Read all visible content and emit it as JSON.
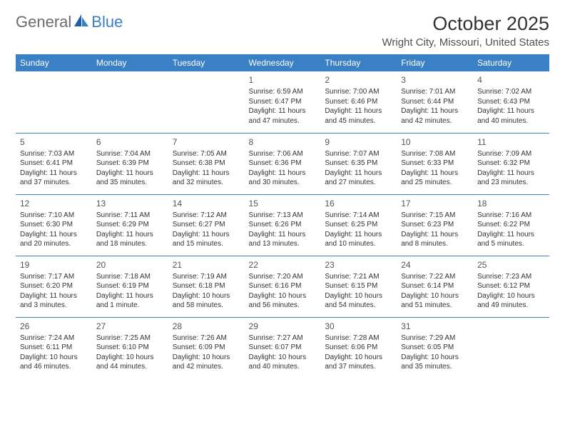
{
  "logo": {
    "part1": "General",
    "part2": "Blue"
  },
  "title": "October 2025",
  "location": "Wright City, Missouri, United States",
  "colors": {
    "header_bg": "#3b7fc4",
    "header_text": "#ffffff",
    "border": "#3b7fc4",
    "day_text": "#333333",
    "daynum": "#555555",
    "logo_gray": "#6b6b6b",
    "logo_blue": "#3b7fc4"
  },
  "daysOfWeek": [
    "Sunday",
    "Monday",
    "Tuesday",
    "Wednesday",
    "Thursday",
    "Friday",
    "Saturday"
  ],
  "weeks": [
    [
      null,
      null,
      null,
      {
        "n": "1",
        "sr": "6:59 AM",
        "ss": "6:47 PM",
        "dl": "11 hours and 47 minutes."
      },
      {
        "n": "2",
        "sr": "7:00 AM",
        "ss": "6:46 PM",
        "dl": "11 hours and 45 minutes."
      },
      {
        "n": "3",
        "sr": "7:01 AM",
        "ss": "6:44 PM",
        "dl": "11 hours and 42 minutes."
      },
      {
        "n": "4",
        "sr": "7:02 AM",
        "ss": "6:43 PM",
        "dl": "11 hours and 40 minutes."
      }
    ],
    [
      {
        "n": "5",
        "sr": "7:03 AM",
        "ss": "6:41 PM",
        "dl": "11 hours and 37 minutes."
      },
      {
        "n": "6",
        "sr": "7:04 AM",
        "ss": "6:39 PM",
        "dl": "11 hours and 35 minutes."
      },
      {
        "n": "7",
        "sr": "7:05 AM",
        "ss": "6:38 PM",
        "dl": "11 hours and 32 minutes."
      },
      {
        "n": "8",
        "sr": "7:06 AM",
        "ss": "6:36 PM",
        "dl": "11 hours and 30 minutes."
      },
      {
        "n": "9",
        "sr": "7:07 AM",
        "ss": "6:35 PM",
        "dl": "11 hours and 27 minutes."
      },
      {
        "n": "10",
        "sr": "7:08 AM",
        "ss": "6:33 PM",
        "dl": "11 hours and 25 minutes."
      },
      {
        "n": "11",
        "sr": "7:09 AM",
        "ss": "6:32 PM",
        "dl": "11 hours and 23 minutes."
      }
    ],
    [
      {
        "n": "12",
        "sr": "7:10 AM",
        "ss": "6:30 PM",
        "dl": "11 hours and 20 minutes."
      },
      {
        "n": "13",
        "sr": "7:11 AM",
        "ss": "6:29 PM",
        "dl": "11 hours and 18 minutes."
      },
      {
        "n": "14",
        "sr": "7:12 AM",
        "ss": "6:27 PM",
        "dl": "11 hours and 15 minutes."
      },
      {
        "n": "15",
        "sr": "7:13 AM",
        "ss": "6:26 PM",
        "dl": "11 hours and 13 minutes."
      },
      {
        "n": "16",
        "sr": "7:14 AM",
        "ss": "6:25 PM",
        "dl": "11 hours and 10 minutes."
      },
      {
        "n": "17",
        "sr": "7:15 AM",
        "ss": "6:23 PM",
        "dl": "11 hours and 8 minutes."
      },
      {
        "n": "18",
        "sr": "7:16 AM",
        "ss": "6:22 PM",
        "dl": "11 hours and 5 minutes."
      }
    ],
    [
      {
        "n": "19",
        "sr": "7:17 AM",
        "ss": "6:20 PM",
        "dl": "11 hours and 3 minutes."
      },
      {
        "n": "20",
        "sr": "7:18 AM",
        "ss": "6:19 PM",
        "dl": "11 hours and 1 minute."
      },
      {
        "n": "21",
        "sr": "7:19 AM",
        "ss": "6:18 PM",
        "dl": "10 hours and 58 minutes."
      },
      {
        "n": "22",
        "sr": "7:20 AM",
        "ss": "6:16 PM",
        "dl": "10 hours and 56 minutes."
      },
      {
        "n": "23",
        "sr": "7:21 AM",
        "ss": "6:15 PM",
        "dl": "10 hours and 54 minutes."
      },
      {
        "n": "24",
        "sr": "7:22 AM",
        "ss": "6:14 PM",
        "dl": "10 hours and 51 minutes."
      },
      {
        "n": "25",
        "sr": "7:23 AM",
        "ss": "6:12 PM",
        "dl": "10 hours and 49 minutes."
      }
    ],
    [
      {
        "n": "26",
        "sr": "7:24 AM",
        "ss": "6:11 PM",
        "dl": "10 hours and 46 minutes."
      },
      {
        "n": "27",
        "sr": "7:25 AM",
        "ss": "6:10 PM",
        "dl": "10 hours and 44 minutes."
      },
      {
        "n": "28",
        "sr": "7:26 AM",
        "ss": "6:09 PM",
        "dl": "10 hours and 42 minutes."
      },
      {
        "n": "29",
        "sr": "7:27 AM",
        "ss": "6:07 PM",
        "dl": "10 hours and 40 minutes."
      },
      {
        "n": "30",
        "sr": "7:28 AM",
        "ss": "6:06 PM",
        "dl": "10 hours and 37 minutes."
      },
      {
        "n": "31",
        "sr": "7:29 AM",
        "ss": "6:05 PM",
        "dl": "10 hours and 35 minutes."
      },
      null
    ]
  ],
  "labels": {
    "sunrise": "Sunrise:",
    "sunset": "Sunset:",
    "daylight": "Daylight:"
  }
}
